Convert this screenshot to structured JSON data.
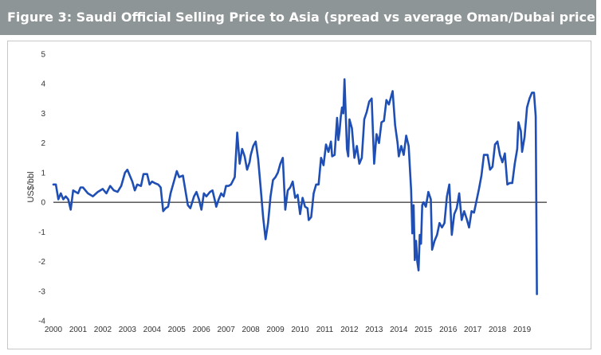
{
  "header": {
    "title": "Figure 3: Saudi Official Selling Price to Asia (spread vs average Oman/Dubai price)"
  },
  "colors": {
    "header_bg": "#8e9597",
    "series": "#1f4fb4",
    "zero_line": "#000000"
  },
  "chart_data": {
    "type": "line",
    "title": "Figure 3: Saudi Official Selling Price to Asia (spread vs average Oman/Dubai price)",
    "ylabel": "US$/bbl",
    "xlabel": "",
    "ylim": [
      -4,
      5
    ],
    "xlim": [
      2000,
      2020
    ],
    "grid": false,
    "yticks": [
      "5",
      "4",
      "3",
      "2",
      "1",
      "0",
      "-1",
      "-2",
      "-3",
      "-4"
    ],
    "xticks": [
      "2000",
      "2001",
      "2002",
      "2003",
      "2004",
      "2005",
      "2006",
      "2007",
      "2008",
      "2009",
      "2010",
      "2011",
      "2012",
      "2013",
      "2014",
      "2015",
      "2016",
      "2017",
      "2018",
      "2019"
    ],
    "series": [
      {
        "values": [
          [
            2000.0,
            0.6
          ],
          [
            2000.1,
            0.6
          ],
          [
            2000.2,
            0.1
          ],
          [
            2000.3,
            0.3
          ],
          [
            2000.4,
            0.1
          ],
          [
            2000.5,
            0.2
          ],
          [
            2000.6,
            0.1
          ],
          [
            2000.7,
            -0.25
          ],
          [
            2000.8,
            0.4
          ],
          [
            2000.9,
            0.35
          ],
          [
            2001.0,
            0.3
          ],
          [
            2001.1,
            0.5
          ],
          [
            2001.2,
            0.5
          ],
          [
            2001.4,
            0.3
          ],
          [
            2001.6,
            0.2
          ],
          [
            2001.8,
            0.35
          ],
          [
            2002.0,
            0.45
          ],
          [
            2002.15,
            0.3
          ],
          [
            2002.3,
            0.55
          ],
          [
            2002.45,
            0.4
          ],
          [
            2002.6,
            0.35
          ],
          [
            2002.75,
            0.55
          ],
          [
            2002.9,
            1.0
          ],
          [
            2003.0,
            1.1
          ],
          [
            2003.1,
            0.9
          ],
          [
            2003.2,
            0.7
          ],
          [
            2003.3,
            0.4
          ],
          [
            2003.4,
            0.6
          ],
          [
            2003.55,
            0.55
          ],
          [
            2003.65,
            0.95
          ],
          [
            2003.8,
            0.95
          ],
          [
            2003.9,
            0.6
          ],
          [
            2004.0,
            0.7
          ],
          [
            2004.1,
            0.65
          ],
          [
            2004.25,
            0.6
          ],
          [
            2004.35,
            0.5
          ],
          [
            2004.45,
            -0.3
          ],
          [
            2004.55,
            -0.2
          ],
          [
            2004.65,
            -0.15
          ],
          [
            2004.75,
            0.3
          ],
          [
            2004.9,
            0.75
          ],
          [
            2005.0,
            1.05
          ],
          [
            2005.1,
            0.85
          ],
          [
            2005.25,
            0.9
          ],
          [
            2005.35,
            0.4
          ],
          [
            2005.45,
            -0.1
          ],
          [
            2005.55,
            -0.2
          ],
          [
            2005.7,
            0.2
          ],
          [
            2005.8,
            0.35
          ],
          [
            2005.9,
            0.1
          ],
          [
            2006.0,
            -0.25
          ],
          [
            2006.1,
            0.3
          ],
          [
            2006.2,
            0.2
          ],
          [
            2006.35,
            0.35
          ],
          [
            2006.45,
            0.4
          ],
          [
            2006.55,
            0.05
          ],
          [
            2006.6,
            -0.15
          ],
          [
            2006.7,
            0.1
          ],
          [
            2006.8,
            0.3
          ],
          [
            2006.9,
            0.2
          ],
          [
            2007.0,
            0.55
          ],
          [
            2007.1,
            0.55
          ],
          [
            2007.2,
            0.6
          ],
          [
            2007.35,
            0.85
          ],
          [
            2007.45,
            2.35
          ],
          [
            2007.55,
            1.3
          ],
          [
            2007.65,
            1.8
          ],
          [
            2007.75,
            1.55
          ],
          [
            2007.85,
            1.1
          ],
          [
            2007.95,
            1.35
          ],
          [
            2008.0,
            1.6
          ],
          [
            2008.1,
            1.9
          ],
          [
            2008.2,
            2.05
          ],
          [
            2008.3,
            1.45
          ],
          [
            2008.4,
            0.5
          ],
          [
            2008.5,
            -0.5
          ],
          [
            2008.6,
            -1.25
          ],
          [
            2008.7,
            -0.7
          ],
          [
            2008.8,
            0.2
          ],
          [
            2008.9,
            0.75
          ],
          [
            2009.0,
            0.85
          ],
          [
            2009.1,
            1.0
          ],
          [
            2009.2,
            1.3
          ],
          [
            2009.3,
            1.5
          ],
          [
            2009.4,
            -0.25
          ],
          [
            2009.5,
            0.4
          ],
          [
            2009.6,
            0.5
          ],
          [
            2009.7,
            0.7
          ],
          [
            2009.8,
            0.15
          ],
          [
            2009.9,
            0.25
          ],
          [
            2010.0,
            -0.4
          ],
          [
            2010.1,
            0.15
          ],
          [
            2010.2,
            -0.15
          ],
          [
            2010.3,
            -0.2
          ],
          [
            2010.35,
            -0.6
          ],
          [
            2010.45,
            -0.5
          ],
          [
            2010.55,
            0.3
          ],
          [
            2010.65,
            0.6
          ],
          [
            2010.75,
            0.6
          ],
          [
            2010.85,
            1.5
          ],
          [
            2010.95,
            1.25
          ],
          [
            2011.05,
            1.95
          ],
          [
            2011.15,
            1.7
          ],
          [
            2011.25,
            2.05
          ],
          [
            2011.3,
            1.55
          ],
          [
            2011.4,
            1.6
          ],
          [
            2011.5,
            2.85
          ],
          [
            2011.55,
            2.1
          ],
          [
            2011.6,
            2.4
          ],
          [
            2011.65,
            2.9
          ],
          [
            2011.7,
            3.2
          ],
          [
            2011.75,
            3.0
          ],
          [
            2011.8,
            4.15
          ],
          [
            2011.9,
            1.8
          ],
          [
            2011.95,
            1.55
          ],
          [
            2012.0,
            2.8
          ],
          [
            2012.1,
            2.5
          ],
          [
            2012.2,
            1.5
          ],
          [
            2012.3,
            1.9
          ],
          [
            2012.4,
            1.3
          ],
          [
            2012.5,
            1.5
          ],
          [
            2012.6,
            2.8
          ],
          [
            2012.7,
            3.05
          ],
          [
            2012.8,
            3.4
          ],
          [
            2012.9,
            3.5
          ],
          [
            2013.0,
            1.3
          ],
          [
            2013.1,
            2.3
          ],
          [
            2013.2,
            2.0
          ],
          [
            2013.3,
            2.7
          ],
          [
            2013.4,
            2.75
          ],
          [
            2013.5,
            3.45
          ],
          [
            2013.6,
            3.3
          ],
          [
            2013.7,
            3.6
          ],
          [
            2013.75,
            3.75
          ],
          [
            2013.85,
            2.6
          ],
          [
            2013.95,
            2.0
          ],
          [
            2014.0,
            1.55
          ],
          [
            2014.1,
            1.9
          ],
          [
            2014.2,
            1.6
          ],
          [
            2014.3,
            2.25
          ],
          [
            2014.4,
            1.9
          ],
          [
            2014.5,
            0.4
          ],
          [
            2014.55,
            -1.05
          ],
          [
            2014.6,
            -0.1
          ],
          [
            2014.65,
            -1.95
          ],
          [
            2014.7,
            -1.3
          ],
          [
            2014.75,
            -2.0
          ],
          [
            2014.8,
            -2.3
          ],
          [
            2014.85,
            -1.1
          ],
          [
            2014.9,
            -1.4
          ],
          [
            2014.95,
            -0.1
          ],
          [
            2015.0,
            0.0
          ],
          [
            2015.1,
            -0.15
          ],
          [
            2015.2,
            0.35
          ],
          [
            2015.3,
            0.1
          ],
          [
            2015.35,
            -1.6
          ],
          [
            2015.45,
            -1.3
          ],
          [
            2015.55,
            -1.1
          ],
          [
            2015.65,
            -0.7
          ],
          [
            2015.75,
            -0.85
          ],
          [
            2015.85,
            -0.7
          ],
          [
            2015.95,
            0.2
          ],
          [
            2016.05,
            0.6
          ],
          [
            2016.15,
            -1.1
          ],
          [
            2016.25,
            -0.4
          ],
          [
            2016.35,
            -0.2
          ],
          [
            2016.45,
            0.3
          ],
          [
            2016.55,
            -0.6
          ],
          [
            2016.65,
            -0.3
          ],
          [
            2016.75,
            -0.55
          ],
          [
            2016.85,
            -0.85
          ],
          [
            2016.95,
            -0.3
          ],
          [
            2017.05,
            -0.35
          ],
          [
            2017.15,
            0.05
          ],
          [
            2017.25,
            0.45
          ],
          [
            2017.35,
            0.9
          ],
          [
            2017.45,
            1.6
          ],
          [
            2017.6,
            1.6
          ],
          [
            2017.7,
            1.1
          ],
          [
            2017.8,
            1.2
          ],
          [
            2017.9,
            1.95
          ],
          [
            2018.0,
            2.05
          ],
          [
            2018.1,
            1.6
          ],
          [
            2018.2,
            1.35
          ],
          [
            2018.3,
            1.65
          ],
          [
            2018.4,
            0.6
          ],
          [
            2018.5,
            0.65
          ],
          [
            2018.6,
            0.65
          ],
          [
            2018.7,
            1.3
          ],
          [
            2018.8,
            1.8
          ],
          [
            2018.85,
            2.7
          ],
          [
            2018.95,
            2.4
          ],
          [
            2019.0,
            1.7
          ],
          [
            2019.1,
            2.2
          ],
          [
            2019.2,
            3.2
          ],
          [
            2019.3,
            3.5
          ],
          [
            2019.4,
            3.7
          ],
          [
            2019.48,
            3.7
          ],
          [
            2019.55,
            2.9
          ],
          [
            2019.6,
            -3.1
          ]
        ]
      }
    ]
  }
}
